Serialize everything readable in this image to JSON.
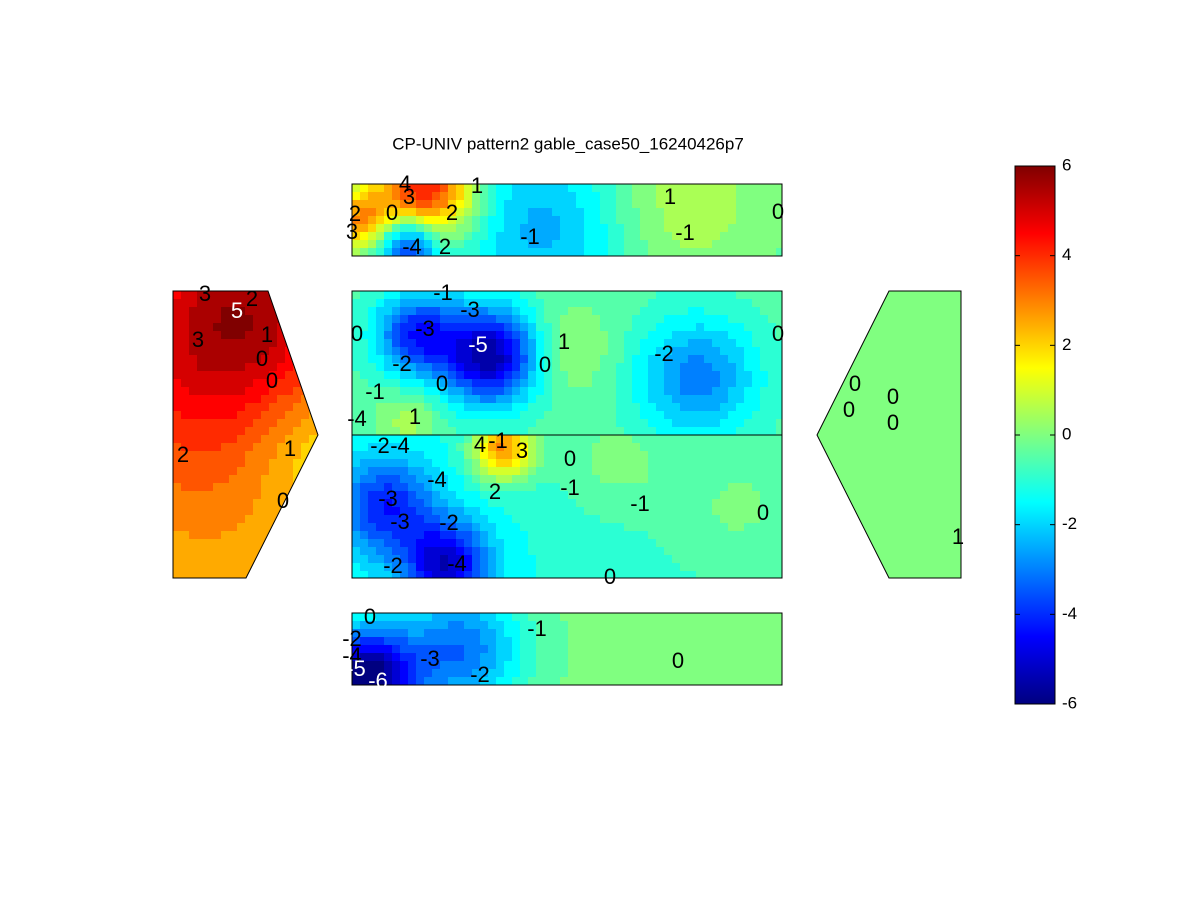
{
  "chart_data": {
    "type": "contour",
    "title": "CP-UNIV pattern2 gable_case50_16240426p7",
    "colormap": "jet",
    "clim": [
      -6,
      6
    ],
    "colorbar_ticks": [
      -6,
      -4,
      -2,
      0,
      2,
      4,
      6
    ],
    "contour_labels": [
      4,
      3,
      1,
      2,
      0,
      2,
      3,
      -1,
      1,
      -1,
      0,
      -4,
      2,
      3,
      5,
      2,
      3,
      0,
      -3,
      -3,
      -5,
      -1,
      1,
      0,
      -2,
      0,
      -2,
      -1,
      0,
      -4,
      1,
      0,
      0,
      1,
      0,
      0,
      0,
      0,
      2,
      1,
      0,
      -1,
      4,
      3,
      0,
      -1,
      -1,
      0,
      -4,
      2,
      -3,
      -3,
      -2,
      -4,
      -2,
      0,
      1,
      -2,
      -4,
      0,
      -1,
      -2,
      -4,
      -3,
      -2,
      0,
      -6,
      -5
    ]
  }
}
